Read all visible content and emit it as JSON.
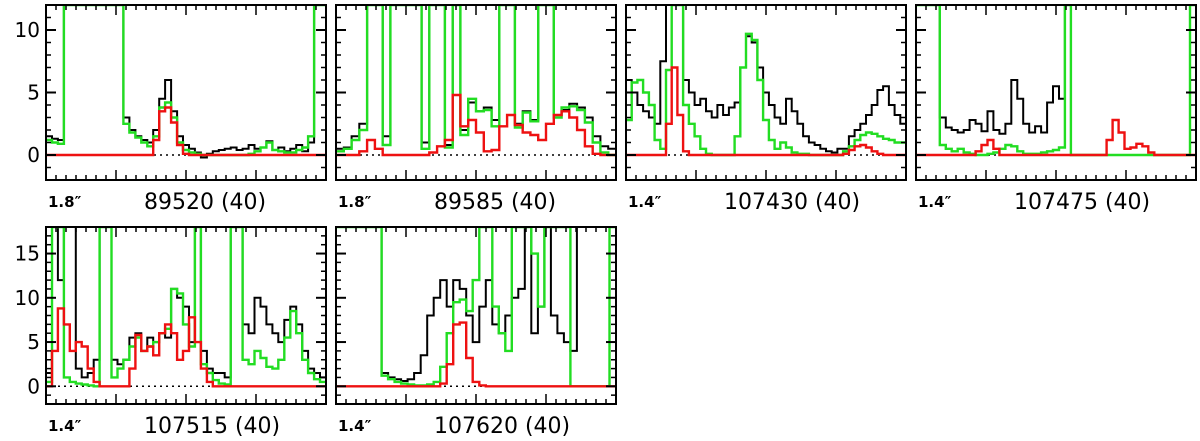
{
  "chart_data": {
    "type": "line",
    "colors": {
      "observed": "#000000",
      "model_total": "#22dd22",
      "model_line": "#ee1111"
    },
    "panels": [
      {
        "title": "89520  (40)",
        "beam": "1.8″",
        "ylim": [
          -2,
          12
        ],
        "yticks": [
          0,
          5,
          10
        ],
        "series": {
          "observed": [
            1.5,
            1.3,
            1.2,
            12,
            12,
            12,
            12,
            12,
            12,
            12,
            12,
            12,
            12,
            3,
            2,
            1.5,
            1.2,
            1,
            2,
            4.5,
            6,
            3.5,
            1.5,
            0.8,
            0.5,
            0.2,
            -0.2,
            0.1,
            0.3,
            0.4,
            0.5,
            0.6,
            0.4,
            0.5,
            0.8,
            0.5,
            0.6,
            1.1,
            0.4,
            0.6,
            0.3,
            0.5,
            0.8,
            0.3,
            1,
            12,
            12
          ],
          "model_total": [
            1.2,
            1.0,
            0.9,
            12,
            12,
            12,
            12,
            12,
            12,
            12,
            12,
            12,
            12,
            2.5,
            1.8,
            1.4,
            1.0,
            0.7,
            1.5,
            3.8,
            4.2,
            3.0,
            1.0,
            0.4,
            0.2,
            0.1,
            0,
            0,
            0,
            0,
            0,
            0,
            0,
            0,
            0.1,
            0.3,
            0.6,
            1.0,
            0.4,
            0.3,
            0.2,
            0.2,
            0.4,
            0.6,
            1.5,
            12,
            12
          ],
          "model_line": [
            0,
            0,
            0,
            0,
            0,
            0,
            0,
            0,
            0,
            0,
            0,
            0,
            0,
            0,
            0,
            0,
            0,
            0,
            1.2,
            3.5,
            3.8,
            2.6,
            0.8,
            0.1,
            0,
            0,
            0,
            0,
            0,
            0,
            0,
            0,
            0,
            0,
            0,
            0,
            0,
            0,
            0,
            0,
            0,
            0,
            0,
            0,
            0,
            0,
            0
          ]
        }
      },
      {
        "title": "89585  (40)",
        "beam": "1.8″",
        "ylim": [
          -2,
          12
        ],
        "yticks": [
          0,
          5,
          10
        ],
        "series": {
          "observed": [
            0.5,
            0.6,
            1.5,
            2.5,
            12,
            12,
            1.5,
            12,
            12,
            12,
            12,
            1,
            12,
            12,
            0.8,
            12,
            2.0,
            4.2,
            3.5,
            3.8,
            2.8,
            12,
            12,
            2.5,
            3.5,
            2.8,
            12,
            12,
            3.2,
            3.6,
            4.1,
            3.8,
            3.0,
            1.5,
            0.7,
            0.5
          ],
          "model_total": [
            0.3,
            0.5,
            1.2,
            2.0,
            12,
            12,
            0.8,
            12,
            12,
            12,
            12,
            0.5,
            12,
            12,
            0.6,
            12,
            1.6,
            4.5,
            3.5,
            3.6,
            2.3,
            12,
            12,
            2.2,
            3.4,
            2.7,
            12,
            12,
            3.0,
            3.8,
            3.9,
            3.6,
            2.6,
            1.0,
            0.2,
            0.0
          ],
          "model_line": [
            0,
            0,
            0,
            0.3,
            1.2,
            0.5,
            0,
            0,
            0,
            0,
            0,
            0,
            0.2,
            0.7,
            1.2,
            4.8,
            2.3,
            2.8,
            1.8,
            0.3,
            0.4,
            2.3,
            3.2,
            2.4,
            1.8,
            1.6,
            1.2,
            2.5,
            3.2,
            3.5,
            3.0,
            2.0,
            0.7,
            0.1,
            0,
            0
          ]
        }
      },
      {
        "title": "107430  (40)",
        "beam": "1.4″",
        "ylim": [
          -2,
          12
        ],
        "yticks": [
          0,
          5,
          10
        ],
        "series": {
          "observed": [
            6,
            5,
            4,
            3.5,
            3,
            2.5,
            7.5,
            12,
            12,
            12,
            6,
            5,
            4,
            4.5,
            3.5,
            3,
            4,
            3.2,
            3.8,
            4.2,
            7,
            9.5,
            9,
            7,
            5,
            4,
            3,
            2.5,
            4.5,
            3.5,
            2.5,
            1.5,
            1,
            0.8,
            0.5,
            0.3,
            0.2,
            0.5,
            0.5,
            1.5,
            2,
            2.5,
            3.2,
            4,
            5.2,
            5.5,
            4,
            3.2,
            2.5
          ],
          "model_total": [
            2.8,
            5.8,
            6.0,
            5.0,
            4.0,
            1.2,
            0.5,
            6.8,
            12,
            12,
            4,
            2.5,
            1.5,
            0.5,
            0.1,
            0,
            0,
            0,
            0,
            1.5,
            7,
            9.7,
            9.2,
            6,
            2.8,
            1.2,
            0.5,
            1.0,
            0.6,
            0.2,
            0.1,
            0.1,
            0,
            0,
            0,
            0,
            0,
            0,
            0.3,
            0.7,
            1.2,
            1.6,
            1.8,
            1.7,
            1.5,
            1.3,
            1.2,
            1.0,
            1.0
          ],
          "model_line": [
            0,
            0,
            0,
            0,
            0,
            0,
            0,
            2.5,
            7.0,
            3.2,
            0.3,
            0,
            0,
            0,
            0,
            0,
            0,
            0,
            0,
            0,
            0,
            0,
            0,
            0,
            0,
            0,
            0,
            0,
            0,
            0,
            0,
            0,
            0,
            0,
            0,
            0,
            0,
            0,
            0.1,
            0.4,
            0.7,
            0.8,
            0.6,
            0.3,
            0.1,
            0,
            0,
            0,
            0
          ]
        }
      },
      {
        "title": "107475  (40)",
        "beam": "1.4″",
        "ylim": [
          -2,
          12
        ],
        "yticks": [
          0,
          5,
          10
        ],
        "series": {
          "observed": [
            12,
            12,
            12,
            12,
            3,
            2.2,
            2,
            1.8,
            2,
            2.8,
            2.5,
            1.9,
            3.5,
            2,
            1.7,
            2.5,
            6,
            4.5,
            2.5,
            1.8,
            2.3,
            1.8,
            4.2,
            5.5,
            4.5,
            12,
            12,
            12,
            12,
            12,
            12,
            12,
            12,
            12,
            12,
            12,
            12,
            12,
            12,
            12,
            12,
            12,
            12,
            12,
            12,
            12,
            12
          ],
          "model_total": [
            12,
            12,
            12,
            12,
            0.8,
            0.5,
            0.3,
            0.5,
            0.2,
            0.1,
            0.0,
            0.0,
            0.1,
            0.2,
            0.5,
            0.8,
            0.7,
            0.3,
            0.1,
            0.1,
            0.1,
            0.2,
            0.3,
            0.4,
            0.6,
            12,
            0,
            0,
            0,
            0,
            0,
            0,
            0,
            0,
            0,
            0,
            0,
            0,
            0,
            0,
            0,
            0,
            0,
            0,
            0,
            0,
            12
          ],
          "model_line": [
            0,
            0,
            0,
            0,
            0,
            0,
            0,
            0,
            0,
            0,
            0.3,
            0.8,
            1.2,
            0.5,
            0,
            0,
            0,
            0,
            0,
            0,
            0,
            0,
            0,
            0,
            0,
            0,
            0,
            0,
            0,
            0,
            0,
            0,
            1.2,
            2.8,
            1.8,
            0.5,
            0.6,
            0.9,
            0.7,
            0.2,
            0,
            0,
            0,
            0,
            0,
            0,
            0
          ]
        }
      },
      {
        "title": "107515  (40)",
        "beam": "1.4″",
        "ylim": [
          -2,
          18
        ],
        "yticks": [
          0,
          5,
          10,
          15
        ],
        "series": {
          "observed": [
            1.5,
            18,
            12,
            18,
            18,
            2,
            1,
            1.5,
            3,
            18,
            18,
            3,
            2.5,
            3,
            5.5,
            6,
            4,
            5.5,
            5,
            6,
            5.5,
            11,
            10,
            9,
            5,
            18,
            4,
            2,
            1.5,
            1.5,
            1,
            18,
            18,
            7,
            6,
            10,
            9,
            7,
            6,
            5,
            7.5,
            9,
            7,
            4,
            2,
            1.5,
            1
          ],
          "model_total": [
            0.5,
            18,
            18,
            1.0,
            0.5,
            0.3,
            0.2,
            0.1,
            0,
            18,
            18,
            1,
            2,
            3,
            4.5,
            5.5,
            4,
            4.5,
            5,
            6,
            6.5,
            11,
            10.5,
            7,
            4.5,
            18,
            2.5,
            1.5,
            0.7,
            0.3,
            0.2,
            18,
            18,
            3,
            2.5,
            4,
            3.2,
            2.2,
            2,
            3,
            5.5,
            8.5,
            6,
            3,
            1.5,
            0.8,
            0.5
          ],
          "model_line": [
            0,
            4,
            8.8,
            7,
            4,
            5,
            4.5,
            2,
            0.5,
            0,
            0,
            0,
            0,
            0,
            2,
            5.8,
            4,
            4.5,
            3.5,
            6,
            7,
            6,
            3,
            4,
            7.8,
            5,
            2,
            0.5,
            0,
            0,
            0,
            0,
            0,
            0,
            0,
            0,
            0,
            0,
            0,
            0,
            0,
            0,
            0,
            0,
            0,
            0,
            0
          ]
        }
      },
      {
        "title": "107620  (40)",
        "beam": "1.4″",
        "ylim": [
          -2,
          18
        ],
        "yticks": [
          0,
          5,
          10,
          15
        ],
        "series": {
          "observed": [
            18,
            18,
            18,
            18,
            18,
            18,
            18,
            1.5,
            1.0,
            0.8,
            0.6,
            0.8,
            1.5,
            3.5,
            8,
            10,
            12,
            9,
            12,
            11,
            8,
            5,
            9,
            12,
            7,
            6,
            8,
            10,
            11,
            18,
            6,
            9,
            18,
            8,
            6,
            5,
            4,
            18,
            18,
            18,
            18,
            18,
            18
          ],
          "model_total": [
            18,
            18,
            18,
            18,
            18,
            18,
            18,
            1.2,
            0.8,
            0.5,
            0.3,
            0.2,
            0.1,
            0.1,
            0.2,
            0.5,
            2.2,
            6,
            9.5,
            9.8,
            8.5,
            12,
            18,
            18,
            9,
            6,
            4,
            18,
            18,
            18,
            15,
            9,
            18,
            18,
            18,
            18,
            0,
            0,
            0,
            0,
            0,
            0,
            18
          ],
          "model_line": [
            0,
            0,
            0,
            0,
            0,
            0,
            0,
            0,
            0,
            0,
            0,
            0,
            0,
            0,
            0,
            0,
            0.3,
            2.5,
            7,
            7.2,
            3.2,
            0.5,
            0.1,
            0,
            0,
            0,
            0,
            0,
            0,
            0,
            0,
            0,
            0,
            0,
            0,
            0,
            0,
            0,
            0,
            0,
            0,
            0,
            0
          ]
        }
      }
    ]
  }
}
